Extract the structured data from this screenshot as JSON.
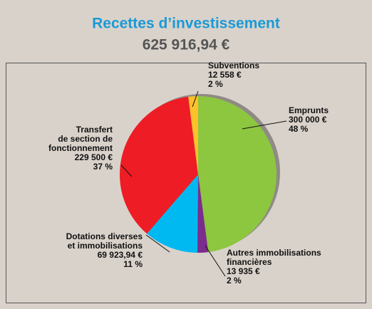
{
  "chart_data": {
    "type": "pie",
    "title": "Recettes d’investissement",
    "subtitle": "625 916,94 €",
    "categories": [
      [
        "Emprunts"
      ],
      [
        "Autres immobilisations",
        "financières"
      ],
      [
        "Dotations diverses",
        "et immobilisations"
      ],
      [
        "Transfert",
        "de section de",
        "fonctionnement"
      ],
      [
        "Subventions"
      ]
    ],
    "values": [
      300000,
      13935,
      69923.94,
      229500,
      12558
    ],
    "value_labels": [
      "300 000 €",
      "13 935 €",
      "69 923,94 €",
      "229 500 €",
      "12 558 €"
    ],
    "percents": [
      48,
      2,
      11,
      37,
      2
    ],
    "percent_labels": [
      "48 %",
      "2 %",
      "11 %",
      "37 %",
      "2 %"
    ],
    "colors": [
      "#8dc63f",
      "#7b2d8e",
      "#00b9f1",
      "#ee1c25",
      "#fdc12b"
    ]
  }
}
